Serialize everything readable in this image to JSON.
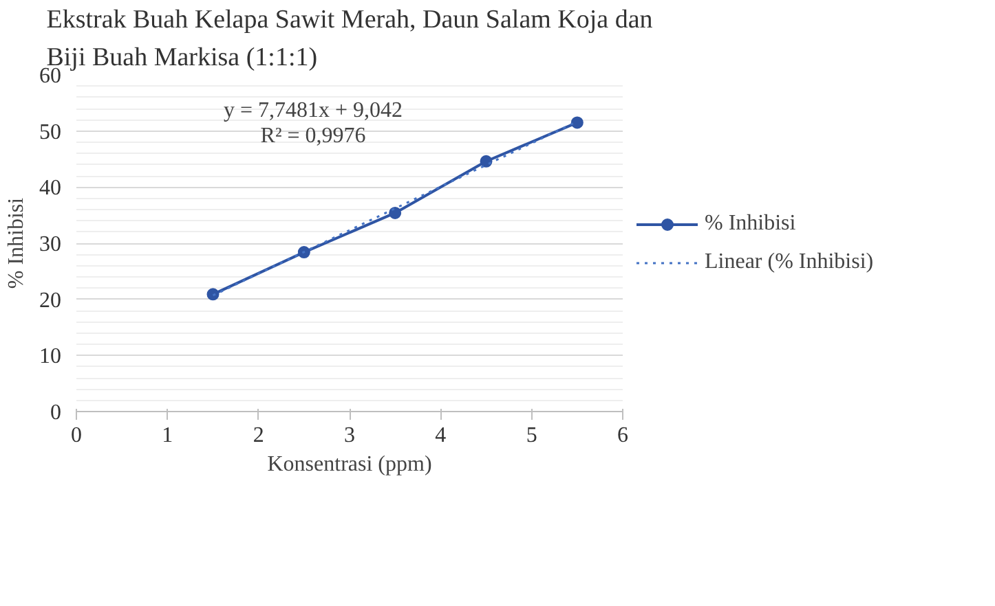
{
  "chart_data": {
    "type": "line",
    "title": "Ekstrak Buah Kelapa Sawit Merah, Daun Salam Koja dan Biji Buah Markisa (1:1:1)",
    "xlabel": "Konsentrasi (ppm)",
    "ylabel": "% Inhibisi",
    "x": [
      1.5,
      2.5,
      3.5,
      4.5,
      5.5
    ],
    "series": [
      {
        "name": "% Inhibisi",
        "color": "#2f55a4",
        "values": [
          20.9,
          28.4,
          35.4,
          44.6,
          51.5
        ],
        "marker": "circle",
        "line_style": "solid"
      },
      {
        "name": "Linear (% Inhibisi)",
        "color": "#4472c4",
        "type": "line",
        "x": [
          1.5,
          5.5
        ],
        "values": [
          20.7,
          51.7
        ],
        "marker": "none",
        "line_style": "dotted"
      }
    ],
    "annotations": [
      "y = 7,7481x + 9,042",
      "R² = 0,9976"
    ],
    "xlim": [
      0,
      6
    ],
    "xticks": [
      0,
      1,
      2,
      3,
      4,
      5,
      6
    ],
    "ylim": [
      0,
      60
    ],
    "yticks": [
      0,
      10,
      20,
      30,
      40,
      50,
      60
    ],
    "grid": "y",
    "legend": "right"
  }
}
